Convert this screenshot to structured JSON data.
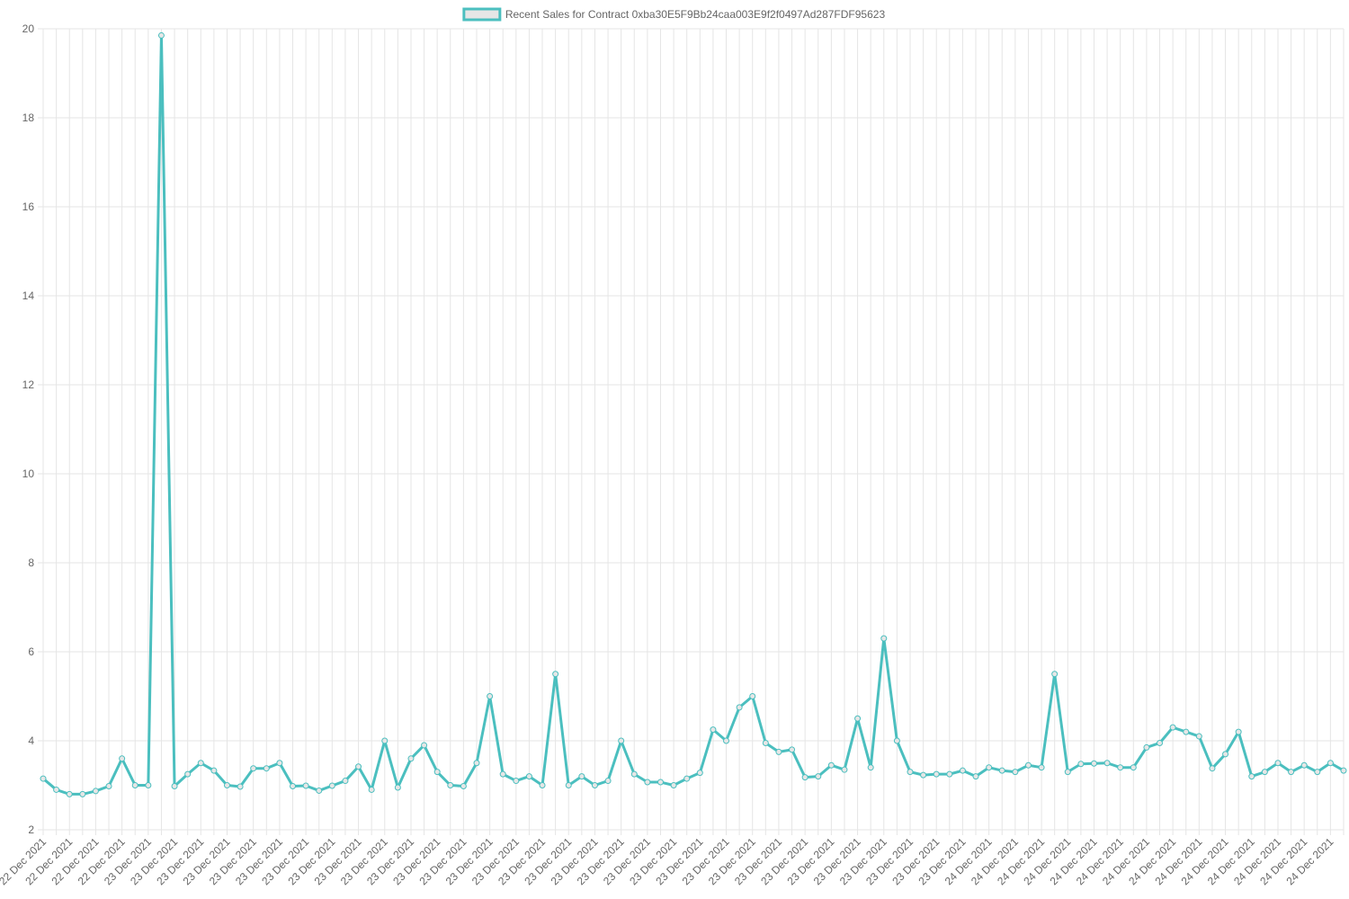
{
  "colors": {
    "series_line": "#4bbfbf",
    "series_fill": "#e6e6e6",
    "grid": "#e5e5e5",
    "text": "#666666"
  },
  "chart_data": {
    "type": "line",
    "legend": {
      "position": "top-center",
      "entries": [
        "Recent Sales for Contract 0xba30E5F9Bb24caa003E9f2f0497Ad287FDF95623"
      ]
    },
    "grid": true,
    "ylim": [
      2,
      20
    ],
    "yticks": [
      2,
      4,
      6,
      8,
      10,
      12,
      14,
      16,
      18,
      20
    ],
    "xtick_labels": [
      "22 Dec 2021",
      "22 Dec 2021",
      "22 Dec 2021",
      "22 Dec 2021",
      "23 Dec 2021",
      "23 Dec 2021",
      "23 Dec 2021",
      "23 Dec 2021",
      "23 Dec 2021",
      "23 Dec 2021",
      "23 Dec 2021",
      "23 Dec 2021",
      "23 Dec 2021",
      "23 Dec 2021",
      "23 Dec 2021",
      "23 Dec 2021",
      "23 Dec 2021",
      "23 Dec 2021",
      "23 Dec 2021",
      "23 Dec 2021",
      "23 Dec 2021",
      "23 Dec 2021",
      "23 Dec 2021",
      "23 Dec 2021",
      "23 Dec 2021",
      "23 Dec 2021",
      "23 Dec 2021",
      "23 Dec 2021",
      "23 Dec 2021",
      "23 Dec 2021",
      "23 Dec 2021",
      "23 Dec 2021",
      "23 Dec 2021",
      "23 Dec 2021",
      "23 Dec 2021",
      "23 Dec 2021",
      "24 Dec 2021",
      "24 Dec 2021",
      "24 Dec 2021",
      "24 Dec 2021",
      "24 Dec 2021",
      "24 Dec 2021",
      "24 Dec 2021",
      "24 Dec 2021",
      "24 Dec 2021",
      "24 Dec 2021",
      "24 Dec 2021",
      "24 Dec 2021",
      "24 Dec 2021",
      "24 Dec 2021"
    ],
    "series": [
      {
        "name": "Recent Sales for Contract 0xba30E5F9Bb24caa003E9f2f0497Ad287FDF95623",
        "values": [
          3.15,
          2.9,
          2.8,
          2.8,
          2.87,
          2.98,
          3.6,
          3.0,
          3.0,
          19.85,
          2.98,
          3.25,
          3.5,
          3.33,
          3.0,
          2.97,
          3.38,
          3.38,
          3.5,
          2.98,
          2.99,
          2.88,
          2.99,
          3.1,
          3.42,
          2.9,
          4.0,
          2.95,
          3.6,
          3.9,
          3.3,
          3.0,
          2.98,
          3.5,
          5.0,
          3.25,
          3.1,
          3.2,
          3.0,
          5.5,
          3.0,
          3.2,
          3.0,
          3.1,
          4.0,
          3.25,
          3.07,
          3.07,
          3.0,
          3.15,
          3.28,
          4.25,
          4.0,
          4.75,
          5.0,
          3.95,
          3.75,
          3.8,
          3.18,
          3.2,
          3.45,
          3.35,
          4.5,
          3.4,
          6.3,
          4.0,
          3.3,
          3.23,
          3.25,
          3.25,
          3.33,
          3.2,
          3.4,
          3.33,
          3.3,
          3.45,
          3.4,
          5.5,
          3.3,
          3.48,
          3.49,
          3.5,
          3.4,
          3.4,
          3.85,
          3.95,
          4.3,
          4.2,
          4.1,
          3.38,
          3.7,
          4.2,
          3.2,
          3.3,
          3.5,
          3.3,
          3.45,
          3.3,
          3.5,
          3.33
        ]
      }
    ]
  }
}
